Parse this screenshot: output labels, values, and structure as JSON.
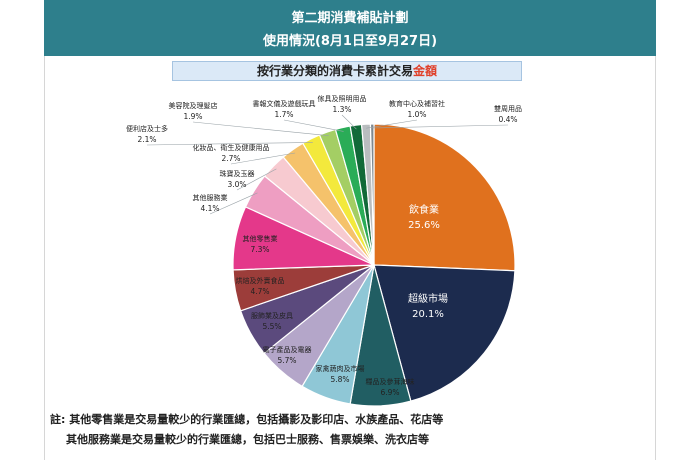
{
  "header": {
    "line1": "第二期消費補貼計劃",
    "line2": "使用情況(8月1日至9月27日)"
  },
  "subtitle": {
    "prefix": "按行業分類的消費卡累計交易",
    "highlight": "金額"
  },
  "colors": {
    "banner": "#2e7f8c",
    "subtitle_bg": "#dbe9f7",
    "highlight": "#e0402a"
  },
  "chart_data": {
    "type": "pie",
    "title": "按行業分類的消費卡累計交易金額",
    "unit": "%",
    "slices": [
      {
        "label": "飲食業",
        "value": 25.6,
        "display": "25.6%",
        "color": "#e0711e"
      },
      {
        "label": "超級市場",
        "value": 20.1,
        "display": "20.1%",
        "color": "#1c2b4e"
      },
      {
        "label": "糧品及參茸海味",
        "value": 6.9,
        "display": "6.9%",
        "color": "#215e63"
      },
      {
        "label": "家禽蔬肉及市場",
        "value": 5.8,
        "display": "5.8%",
        "color": "#8fc7d6"
      },
      {
        "label": "電子產品及電器",
        "value": 5.7,
        "display": "5.7%",
        "color": "#b4a6c9"
      },
      {
        "label": "服飾業及皮具",
        "value": 5.5,
        "display": "5.5%",
        "color": "#5b4a7d"
      },
      {
        "label": "烘焙及外賣食品",
        "value": 4.7,
        "display": "4.7%",
        "color": "#9c3d3a"
      },
      {
        "label": "其他零售業",
        "value": 7.3,
        "display": "7.3%",
        "color": "#e4388a"
      },
      {
        "label": "其他服務業",
        "value": 4.1,
        "display": "4.1%",
        "color": "#ee9ec2"
      },
      {
        "label": "珠寶及玉器",
        "value": 3.0,
        "display": "3.0%",
        "color": "#f7cad0"
      },
      {
        "label": "化妝品、衛生及健康用品",
        "value": 2.7,
        "display": "2.7%",
        "color": "#f5c26b"
      },
      {
        "label": "便利店及士多",
        "value": 2.1,
        "display": "2.1%",
        "color": "#f3e93c"
      },
      {
        "label": "美容院及理髮店",
        "value": 1.9,
        "display": "1.9%",
        "color": "#a4ce64"
      },
      {
        "label": "書報文儀及遊戲玩具",
        "value": 1.7,
        "display": "1.7%",
        "color": "#2aac57"
      },
      {
        "label": "傢具及照明用品",
        "value": 1.3,
        "display": "1.3%",
        "color": "#116a38"
      },
      {
        "label": "教育中心及補習社",
        "value": 1.0,
        "display": "1.0%",
        "color": "#b9bdbf"
      },
      {
        "label": "雙周用品",
        "value": 0.4,
        "display": "0.4%",
        "color": "#7e8890"
      }
    ]
  },
  "notes": {
    "line1": "註: 其他零售業是交易量較少的行業匯總，包括攝影及影印店、水族產品、花店等",
    "line2": "其他服務業是交易量較少的行業匯總，包括巴士服務、售票娛樂、洗衣店等"
  }
}
